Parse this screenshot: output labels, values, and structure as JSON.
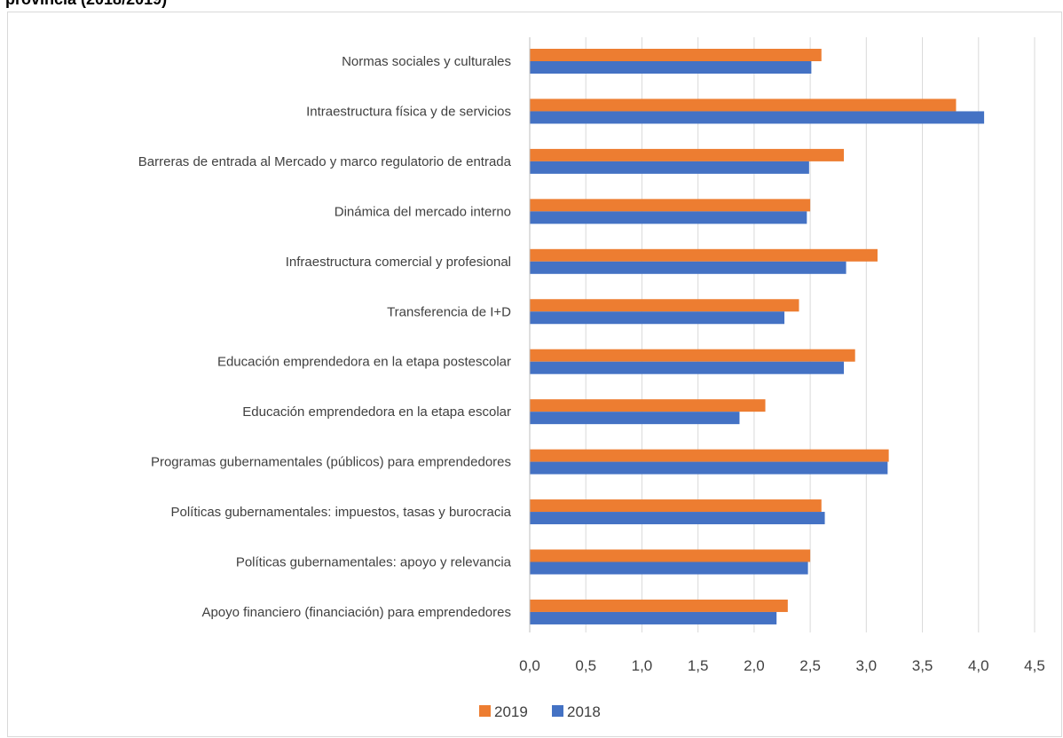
{
  "title": "provincia (2018/2019)",
  "chart_data": {
    "type": "bar",
    "orientation": "horizontal",
    "categories": [
      "Normas sociales y culturales",
      "Intraestructura física y de servicios",
      "Barreras de entrada al Mercado y marco regulatorio de entrada",
      "Dinámica del mercado interno",
      "Infraestructura comercial y profesional",
      "Transferencia de I+D",
      "Educación emprendedora en la etapa postescolar",
      "Educación emprendedora en la etapa escolar",
      "Programas gubernamentales (públicos) para emprendedores",
      "Políticas gubernamentales: impuestos, tasas y burocracia",
      "Políticas gubernamentales: apoyo y relevancia",
      "Apoyo financiero (financiación) para  emprendedores"
    ],
    "series": [
      {
        "name": "2019",
        "color": "#ed7d31",
        "values": [
          2.6,
          3.8,
          2.8,
          2.5,
          3.1,
          2.4,
          2.9,
          2.1,
          3.2,
          2.6,
          2.5,
          2.3
        ]
      },
      {
        "name": "2018",
        "color": "#4472c4",
        "values": [
          2.51,
          4.05,
          2.49,
          2.47,
          2.82,
          2.27,
          2.8,
          1.87,
          3.19,
          2.63,
          2.48,
          2.2
        ]
      }
    ],
    "xlim": [
      0,
      4.5
    ],
    "xticks": [
      "0,0",
      "0,5",
      "1,0",
      "1,5",
      "2,0",
      "2,5",
      "3,0",
      "3,5",
      "4,0",
      "4,5"
    ],
    "grid": "vertical",
    "legend": "bottom",
    "xlabel": "",
    "ylabel": ""
  }
}
